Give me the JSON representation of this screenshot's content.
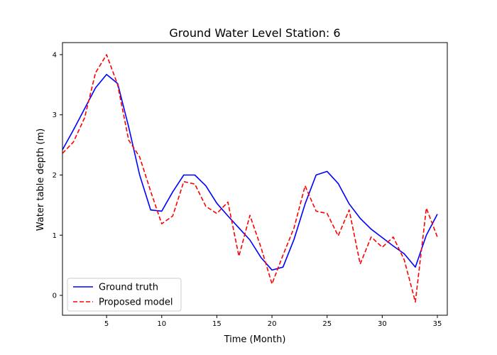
{
  "chart_data": {
    "type": "line",
    "title": "Ground Water Level Station: 6",
    "xlabel": "Time (Month)",
    "ylabel": "Water table depth (m)",
    "xlim": [
      1,
      35.9
    ],
    "ylim": [
      -0.33,
      4.2
    ],
    "xticks": [
      5,
      10,
      15,
      20,
      25,
      30,
      35
    ],
    "yticks": [
      0,
      1,
      2,
      3,
      4
    ],
    "grid": false,
    "legend_position": "lower-left",
    "x": [
      1,
      2,
      3,
      4,
      5,
      6,
      7,
      8,
      9,
      10,
      11,
      12,
      13,
      14,
      15,
      16,
      17,
      18,
      19,
      20,
      21,
      22,
      23,
      24,
      25,
      26,
      27,
      28,
      29,
      30,
      31,
      32,
      33,
      34,
      35
    ],
    "series": [
      {
        "name": "Ground truth",
        "color": "#0000ff",
        "style": "solid",
        "values": [
          2.42,
          2.75,
          3.1,
          3.45,
          3.67,
          3.52,
          2.8,
          2.0,
          1.42,
          1.4,
          1.72,
          2.0,
          2.0,
          1.82,
          1.53,
          1.32,
          1.12,
          0.92,
          0.63,
          0.42,
          0.47,
          0.93,
          1.52,
          2.0,
          2.06,
          1.86,
          1.52,
          1.28,
          1.1,
          0.96,
          0.82,
          0.69,
          0.47,
          1.0,
          1.35
        ]
      },
      {
        "name": "Proposed model",
        "color": "#ff0000",
        "style": "dashed",
        "values": [
          2.36,
          2.55,
          2.95,
          3.7,
          4.0,
          3.5,
          2.58,
          2.3,
          1.73,
          1.19,
          1.32,
          1.89,
          1.85,
          1.48,
          1.36,
          1.55,
          0.65,
          1.33,
          0.8,
          0.19,
          0.67,
          1.12,
          1.82,
          1.4,
          1.36,
          0.99,
          1.42,
          0.52,
          0.97,
          0.8,
          0.97,
          0.59,
          -0.11,
          1.45,
          0.97
        ]
      }
    ]
  }
}
